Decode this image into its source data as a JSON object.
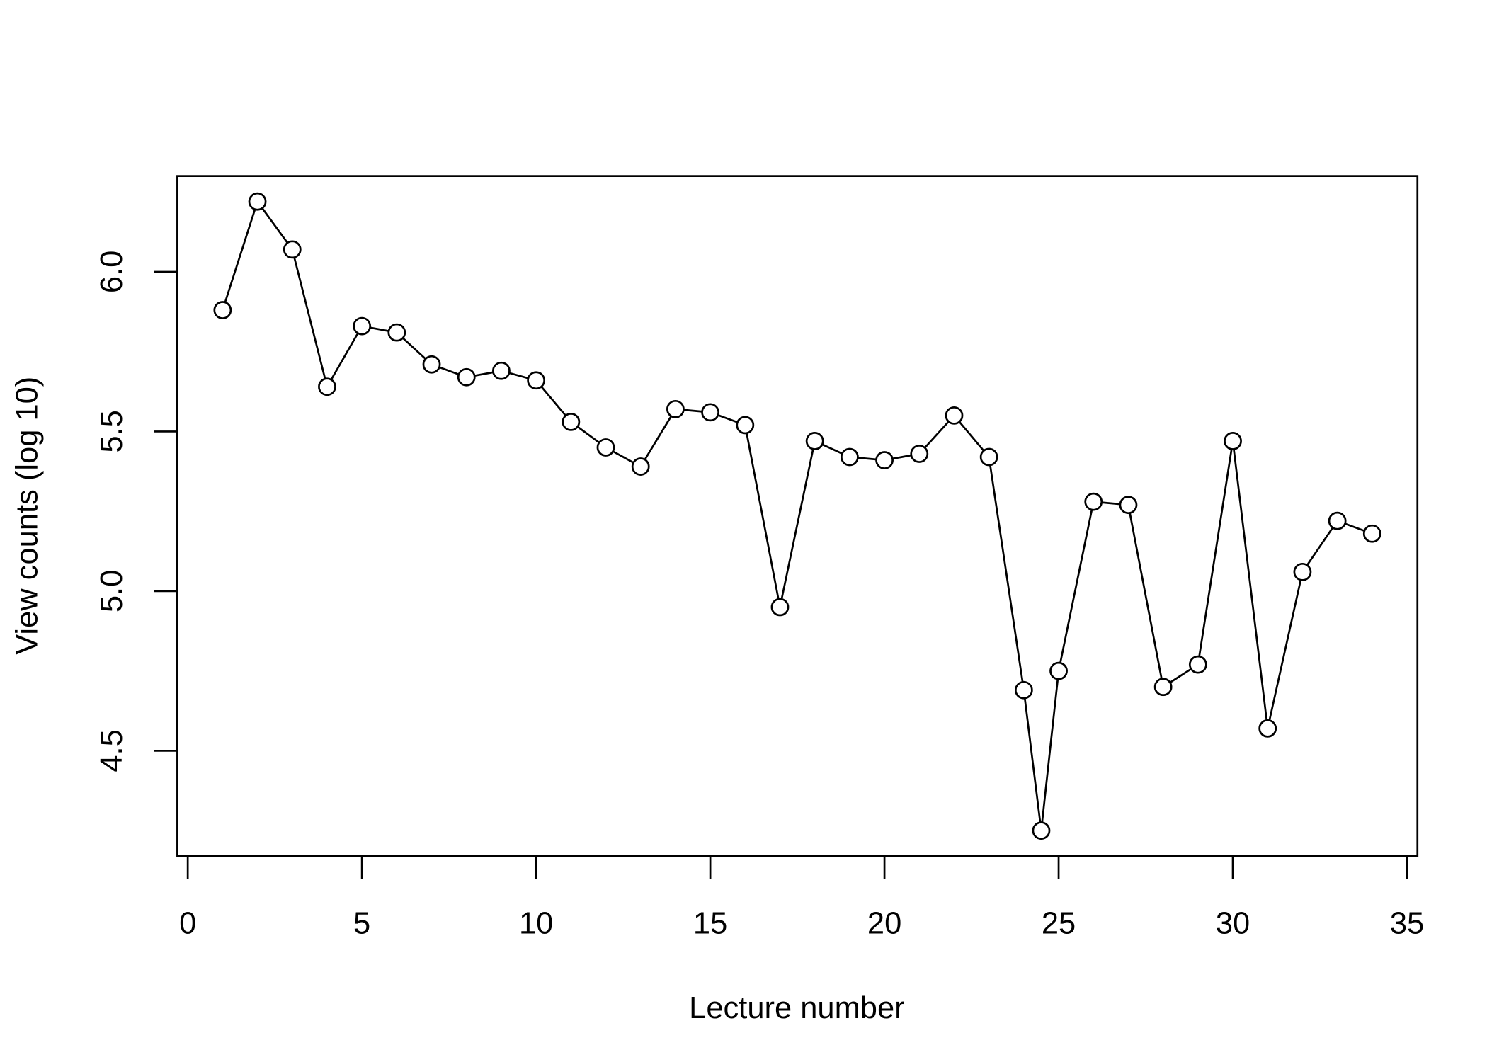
{
  "chart_data": {
    "type": "line",
    "markers": "open-circle",
    "x_label": "Lecture number",
    "y_label": "View counts (log 10)",
    "x": [
      1,
      2,
      3,
      4,
      5,
      6,
      7,
      8,
      9,
      10,
      11,
      12,
      13,
      14,
      15,
      16,
      17,
      18,
      19,
      20,
      21,
      22,
      23,
      24,
      24.5,
      25,
      26,
      27,
      28,
      29,
      30,
      31,
      32,
      33,
      34
    ],
    "values": [
      5.88,
      6.22,
      6.07,
      5.64,
      5.83,
      5.81,
      5.71,
      5.67,
      5.69,
      5.66,
      5.53,
      5.45,
      5.39,
      5.57,
      5.56,
      5.52,
      4.95,
      5.47,
      5.42,
      5.41,
      5.43,
      5.55,
      5.42,
      4.69,
      4.25,
      4.75,
      5.28,
      5.27,
      4.7,
      4.77,
      5.47,
      4.57,
      5.06,
      5.22,
      5.18
    ],
    "color": "#000000",
    "xlim": [
      -0.3,
      35.3
    ],
    "ylim": [
      4.17,
      6.3
    ],
    "xticks": [
      0,
      5,
      10,
      15,
      20,
      25,
      30,
      35
    ],
    "yticks": [
      {
        "value": 4.5,
        "label": "4.5"
      },
      {
        "value": 5,
        "label": "5.0"
      },
      {
        "value": 5.5,
        "label": "5.5"
      },
      {
        "value": 6,
        "label": "6.0"
      }
    ]
  }
}
